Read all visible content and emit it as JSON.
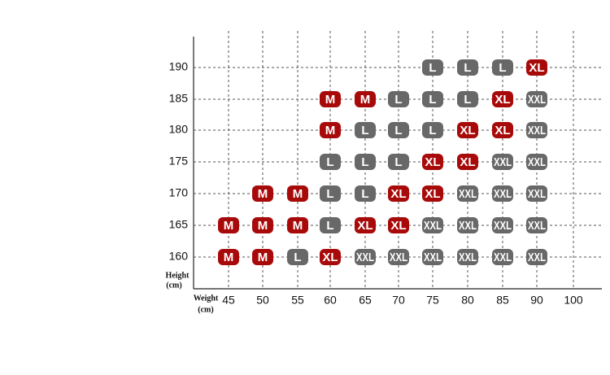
{
  "y_axis": {
    "label_lines": [
      "Height",
      "(cm)"
    ],
    "ticks": [
      "190",
      "185",
      "180",
      "175",
      "170",
      "165",
      "160"
    ]
  },
  "x_axis": {
    "label_lines": [
      "Weight",
      "(cm)"
    ],
    "ticks": [
      "45",
      "50",
      "55",
      "60",
      "65",
      "70",
      "75",
      "80",
      "85",
      "90",
      "100"
    ]
  },
  "badge_colors": {
    "M": "#a80a0a",
    "XL": "#a80a0a",
    "L": "#686868",
    "XXL": "#686868"
  },
  "rows": [
    [
      null,
      null,
      null,
      null,
      null,
      null,
      "L",
      "L",
      "L",
      "XL"
    ],
    [
      null,
      null,
      null,
      "M",
      "M",
      "L",
      "L",
      "L",
      "XL",
      "XXL"
    ],
    [
      null,
      null,
      null,
      "M",
      "L",
      "L",
      "L",
      "XL",
      "XL",
      "XXL"
    ],
    [
      null,
      null,
      null,
      "L",
      "L",
      "L",
      "XL",
      "XL",
      "XXL",
      "XXL"
    ],
    [
      null,
      "M",
      "M",
      "L",
      "L",
      "XL",
      "XL",
      "XXL",
      "XXL",
      "XXL"
    ],
    [
      "M",
      "M",
      "M",
      "L",
      "XL",
      "XL",
      "XXL",
      "XXL",
      "XXL",
      "XXL"
    ],
    [
      "M",
      "M",
      "L",
      "XL",
      "XXL",
      "XXL",
      "XXL",
      "XXL",
      "XXL",
      "XXL"
    ]
  ]
}
